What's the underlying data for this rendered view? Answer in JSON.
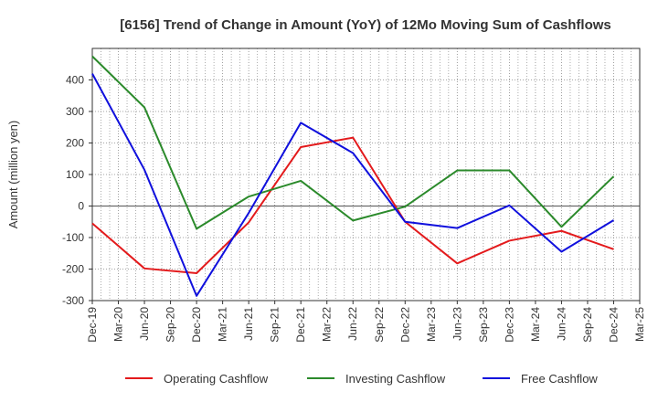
{
  "chart_data": {
    "type": "line",
    "title": "[6156]  Trend of Change in Amount (YoY) of 12Mo Moving Sum of Cashflows",
    "xlabel": "",
    "ylabel": "Amount (million yen)",
    "ylim": [
      -300,
      500
    ],
    "yticks": [
      -300,
      -200,
      -100,
      0,
      100,
      200,
      300,
      400
    ],
    "grid": true,
    "legend_position": "bottom",
    "categories": [
      "Dec-19",
      "Mar-20",
      "Jun-20",
      "Sep-20",
      "Dec-20",
      "Mar-21",
      "Jun-21",
      "Sep-21",
      "Dec-21",
      "Mar-22",
      "Jun-22",
      "Sep-22",
      "Dec-22",
      "Mar-23",
      "Jun-23",
      "Sep-23",
      "Dec-23",
      "Mar-24",
      "Jun-24",
      "Sep-24",
      "Dec-24",
      "Mar-25"
    ],
    "series": [
      {
        "name": "Operating Cashflow",
        "color": "#e31a1c",
        "values": [
          -55,
          null,
          -198,
          null,
          -213,
          null,
          -52,
          null,
          187,
          null,
          217,
          null,
          -50,
          null,
          -182,
          null,
          -110,
          null,
          -79,
          null,
          -137,
          null
        ]
      },
      {
        "name": "Investing Cashflow",
        "color": "#2b8a2b",
        "values": [
          475,
          null,
          313,
          null,
          -72,
          null,
          30,
          null,
          80,
          null,
          -46,
          null,
          -2,
          null,
          113,
          null,
          113,
          null,
          -66,
          null,
          94,
          null
        ]
      },
      {
        "name": "Free Cashflow",
        "color": "#1010dd",
        "values": [
          420,
          null,
          115,
          null,
          -285,
          null,
          -22,
          null,
          264,
          null,
          168,
          null,
          -50,
          null,
          -70,
          null,
          2,
          null,
          -145,
          null,
          -45,
          null
        ]
      }
    ]
  }
}
